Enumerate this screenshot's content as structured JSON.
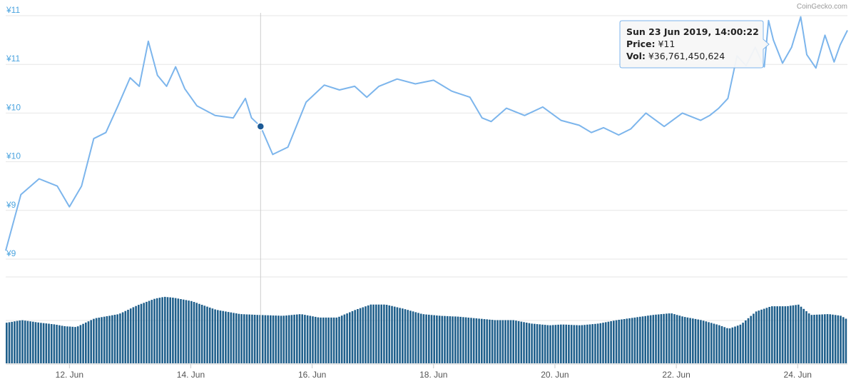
{
  "credit": "CoinGecko.com",
  "colors": {
    "line": "#7cb5ec",
    "bar": "#1f5f8b",
    "grid": "#e6e6e6",
    "ylabel": "#4aa3df",
    "marker": "#1c5a96"
  },
  "tooltip": {
    "date": "Sun 23 Jun 2019, 14:00:22",
    "price_label": "Price:",
    "price_value": "¥11",
    "vol_label": "Vol:",
    "vol_value": "¥36,761,450,624"
  },
  "chart_data": {
    "type": "line",
    "y_ticks": [
      "¥11",
      "¥11",
      "¥10",
      "¥10",
      "¥9",
      "¥9"
    ],
    "x_ticks": [
      "12. Jun",
      "14. Jun",
      "16. Jun",
      "18. Jun",
      "20. Jun",
      "22. Jun",
      "24. Jun"
    ],
    "x_tick_days": [
      12,
      14,
      16,
      18,
      20,
      22,
      24
    ],
    "x_range_days": [
      10.95,
      24.82
    ],
    "y_range": [
      9.0,
      11.0
    ],
    "grid": true,
    "highlight_index": 21,
    "series": [
      {
        "kind": "price_line",
        "x_days": [
          10.95,
          11.2,
          11.5,
          11.8,
          12.0,
          12.2,
          12.4,
          12.6,
          12.8,
          13.0,
          13.15,
          13.3,
          13.45,
          13.6,
          13.75,
          13.9,
          14.1,
          14.4,
          14.7,
          14.9,
          15.0,
          15.15,
          15.35,
          15.6,
          15.9,
          16.2,
          16.45,
          16.7,
          16.9,
          17.1,
          17.4,
          17.7,
          18.0,
          18.3,
          18.6,
          18.8,
          18.95,
          19.2,
          19.5,
          19.8,
          20.1,
          20.4,
          20.6,
          20.8,
          21.05,
          21.25,
          21.5,
          21.8,
          22.1,
          22.4,
          22.55,
          22.7,
          22.85,
          23.0,
          23.15,
          23.3,
          23.45,
          23.52,
          23.6,
          23.75,
          23.9,
          24.05,
          24.15,
          24.3,
          24.45,
          24.6,
          24.7,
          24.82
        ],
        "price": [
          9.07,
          9.53,
          9.66,
          9.6,
          9.43,
          9.6,
          9.99,
          10.04,
          10.26,
          10.49,
          10.42,
          10.79,
          10.51,
          10.42,
          10.58,
          10.4,
          10.26,
          10.18,
          10.16,
          10.32,
          10.16,
          10.09,
          9.86,
          9.92,
          10.29,
          10.43,
          10.39,
          10.42,
          10.33,
          10.42,
          10.48,
          10.44,
          10.47,
          10.38,
          10.33,
          10.16,
          10.13,
          10.24,
          10.18,
          10.25,
          10.14,
          10.1,
          10.04,
          10.08,
          10.02,
          10.07,
          10.2,
          10.09,
          10.2,
          10.14,
          10.18,
          10.24,
          10.32,
          10.67,
          10.59,
          10.74,
          10.58,
          10.96,
          10.8,
          10.61,
          10.74,
          10.99,
          10.68,
          10.57,
          10.84,
          10.62,
          10.76,
          10.88
        ]
      },
      {
        "kind": "volume_bars",
        "x_days": [
          10.95,
          11.2,
          11.5,
          11.75,
          11.9,
          12.1,
          12.4,
          12.8,
          13.1,
          13.4,
          13.55,
          13.7,
          14.0,
          14.4,
          14.8,
          15.1,
          15.5,
          15.8,
          16.1,
          16.4,
          16.7,
          16.95,
          17.2,
          17.5,
          17.8,
          18.1,
          18.4,
          18.7,
          19.0,
          19.3,
          19.6,
          19.9,
          20.1,
          20.4,
          20.7,
          21.0,
          21.3,
          21.6,
          21.9,
          22.1,
          22.4,
          22.7,
          22.85,
          23.05,
          23.3,
          23.55,
          23.8,
          24.0,
          24.2,
          24.5,
          24.7,
          24.82
        ],
        "volume": [
          0.47,
          0.5,
          0.47,
          0.45,
          0.43,
          0.42,
          0.52,
          0.57,
          0.67,
          0.75,
          0.77,
          0.76,
          0.72,
          0.62,
          0.57,
          0.56,
          0.55,
          0.57,
          0.53,
          0.53,
          0.62,
          0.68,
          0.68,
          0.63,
          0.57,
          0.55,
          0.54,
          0.52,
          0.5,
          0.5,
          0.46,
          0.44,
          0.45,
          0.44,
          0.46,
          0.5,
          0.53,
          0.56,
          0.58,
          0.54,
          0.5,
          0.44,
          0.4,
          0.45,
          0.6,
          0.66,
          0.66,
          0.68,
          0.56,
          0.57,
          0.55,
          0.5
        ]
      }
    ]
  }
}
